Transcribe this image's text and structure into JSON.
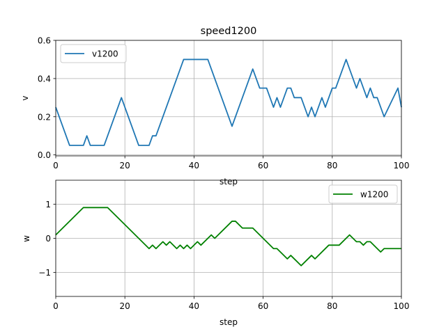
{
  "chart_data": [
    {
      "type": "line",
      "title": "speed1200",
      "xlabel": "step",
      "ylabel": "v",
      "xlim": [
        0,
        100
      ],
      "ylim": [
        -0.005,
        0.6
      ],
      "xticks": [
        "0",
        "20",
        "40",
        "60",
        "80",
        "100"
      ],
      "xtick_values": [
        0,
        20,
        40,
        60,
        80,
        100
      ],
      "yticks": [
        "0.0",
        "0.2",
        "0.4",
        "0.6"
      ],
      "ytick_values": [
        0,
        0.2,
        0.4,
        0.6
      ],
      "grid": true,
      "legend_position": "upper-left",
      "series": [
        {
          "name": "v1200",
          "color": "#1f77b4",
          "x": [
            0,
            4,
            8,
            9,
            10,
            14,
            19,
            24,
            27,
            28,
            29,
            37,
            44,
            51,
            57,
            59,
            61,
            63,
            64,
            65,
            67,
            68,
            69,
            71,
            73,
            74,
            75,
            77,
            78,
            80,
            81,
            84,
            87,
            88,
            90,
            91,
            92,
            93,
            95,
            99,
            100
          ],
          "y": [
            0.25,
            0.05,
            0.05,
            0.1,
            0.05,
            0.05,
            0.3,
            0.05,
            0.05,
            0.1,
            0.1,
            0.5,
            0.5,
            0.15,
            0.45,
            0.35,
            0.35,
            0.25,
            0.3,
            0.25,
            0.35,
            0.35,
            0.3,
            0.3,
            0.2,
            0.25,
            0.2,
            0.3,
            0.25,
            0.35,
            0.35,
            0.5,
            0.35,
            0.4,
            0.3,
            0.35,
            0.3,
            0.3,
            0.2,
            0.35,
            0.25
          ]
        }
      ]
    },
    {
      "type": "line",
      "title": "",
      "xlabel": "step",
      "ylabel": "w",
      "xlim": [
        0,
        100
      ],
      "ylim": [
        -1.7,
        1.7
      ],
      "xticks": [
        "0",
        "20",
        "40",
        "60",
        "80",
        "100"
      ],
      "xtick_values": [
        0,
        20,
        40,
        60,
        80,
        100
      ],
      "yticks": [
        "−1",
        "0",
        "1"
      ],
      "ytick_values": [
        -1,
        0,
        1
      ],
      "grid": true,
      "legend_position": "upper-right",
      "series": [
        {
          "name": "w1200",
          "color": "#008000",
          "x": [
            0,
            8,
            15,
            27,
            28,
            29,
            31,
            32,
            33,
            35,
            36,
            37,
            38,
            39,
            41,
            42,
            45,
            46,
            51,
            52,
            54,
            57,
            63,
            64,
            67,
            68,
            71,
            74,
            75,
            79,
            82,
            85,
            87,
            88,
            89,
            90,
            91,
            94,
            95,
            100
          ],
          "y": [
            0.1,
            0.9,
            0.9,
            -0.3,
            -0.2,
            -0.3,
            -0.1,
            -0.2,
            -0.1,
            -0.3,
            -0.2,
            -0.3,
            -0.2,
            -0.3,
            -0.1,
            -0.2,
            0.1,
            0.0,
            0.5,
            0.5,
            0.3,
            0.3,
            -0.3,
            -0.3,
            -0.6,
            -0.5,
            -0.8,
            -0.5,
            -0.6,
            -0.2,
            -0.2,
            0.1,
            -0.1,
            -0.1,
            -0.2,
            -0.1,
            -0.1,
            -0.4,
            -0.3,
            -0.3
          ]
        }
      ]
    }
  ]
}
